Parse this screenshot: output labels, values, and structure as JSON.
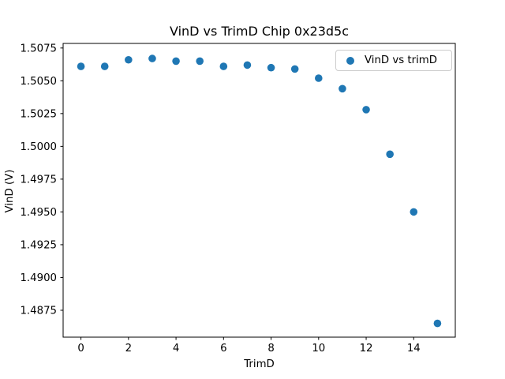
{
  "chart_data": {
    "type": "scatter",
    "title": "VinD vs TrimD Chip 0x23d5c",
    "xlabel": "TrimD",
    "ylabel": "VinD (V)",
    "grid": false,
    "xlim": [
      -0.75,
      15.75
    ],
    "ylim": [
      1.48545,
      1.50785
    ],
    "xticks": [
      0,
      2,
      4,
      6,
      8,
      10,
      12,
      14
    ],
    "xtick_labels": [
      "0",
      "2",
      "4",
      "6",
      "8",
      "10",
      "12",
      "14"
    ],
    "yticks": [
      1.4875,
      1.49,
      1.4925,
      1.495,
      1.4975,
      1.5,
      1.5025,
      1.505,
      1.5075
    ],
    "ytick_labels": [
      "1.4875",
      "1.4900",
      "1.4925",
      "1.4950",
      "1.4975",
      "1.5000",
      "1.5025",
      "1.5050",
      "1.5075"
    ],
    "legend": {
      "label": "VinD vs trimD",
      "position": "upper right"
    },
    "series": [
      {
        "name": "VinD vs trimD",
        "marker_color": "#1f77b4",
        "x": [
          0,
          1,
          2,
          3,
          4,
          5,
          6,
          7,
          8,
          9,
          10,
          11,
          12,
          13,
          14,
          15
        ],
        "y": [
          1.5061,
          1.5061,
          1.5066,
          1.5067,
          1.5065,
          1.5065,
          1.5061,
          1.5062,
          1.506,
          1.5059,
          1.5052,
          1.5044,
          1.5028,
          1.4994,
          1.495,
          1.4865
        ]
      }
    ],
    "colors": {
      "marker": "#1f77b4",
      "axes": "#000000",
      "background": "#ffffff",
      "legend_border": "#cccccc"
    }
  }
}
